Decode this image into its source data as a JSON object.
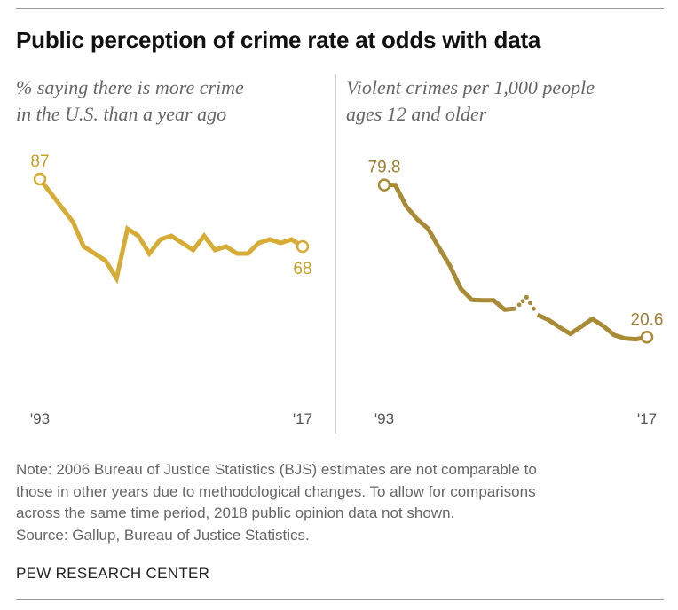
{
  "title": "Public perception of crime rate at odds with data",
  "note_lines": [
    "Note: 2006 Bureau of Justice Statistics (BJS) estimates are not comparable to",
    "those in other years due to methodological changes. To allow for comparisons",
    "across the same time period, 2018 public opinion data not shown.",
    "Source: Gallup, Bureau of Justice Statistics."
  ],
  "brand": "PEW RESEARCH CENTER",
  "colors": {
    "left_line": "#d6ac34",
    "right_line": "#a98a35",
    "label": "#c9a227",
    "label_dark": "#9e8032"
  },
  "chart_data": [
    {
      "type": "line",
      "subtitle_lines": [
        "% saying there is more crime",
        "in the U.S. than a year ago"
      ],
      "x_tick_labels": [
        "'93",
        "'17"
      ],
      "x_range": [
        1993,
        2017
      ],
      "ylim": [
        40,
        100
      ],
      "grid": false,
      "series": [
        {
          "x": [
            1993,
            1994,
            1995,
            1996,
            1997,
            1998,
            1999,
            2000,
            2001,
            2002,
            2003,
            2004,
            2005,
            2006,
            2007,
            2008,
            2009,
            2010,
            2011,
            2012,
            2013,
            2014,
            2015,
            2016,
            2017
          ],
          "values": [
            87,
            83,
            79,
            75,
            68,
            66,
            64,
            59,
            73,
            71,
            66,
            70,
            71,
            69,
            67,
            71,
            67,
            68,
            66,
            66,
            69,
            70,
            69,
            70,
            68
          ],
          "gaps_after": []
        }
      ],
      "annotations": [
        {
          "x": 1993,
          "y": 87,
          "text": "87",
          "position": "above"
        },
        {
          "x": 2017,
          "y": 68,
          "text": "68",
          "position": "below"
        }
      ]
    },
    {
      "type": "line",
      "subtitle_lines": [
        "Violent crimes per 1,000 people",
        "ages 12 and older"
      ],
      "x_tick_labels": [
        "'93",
        "'17"
      ],
      "x_range": [
        1993,
        2017
      ],
      "ylim": [
        0,
        100
      ],
      "grid": false,
      "series": [
        {
          "x": [
            1993,
            1994,
            1995,
            1996,
            1997,
            1998,
            1999,
            2000,
            2001,
            2002,
            2003,
            2004,
            2005,
            2006,
            2007,
            2008,
            2009,
            2010,
            2011,
            2012,
            2013,
            2014,
            2015,
            2016,
            2017
          ],
          "values": [
            79.8,
            79.8,
            71.5,
            66.5,
            62.8,
            55.4,
            48.4,
            39.4,
            35.1,
            34.9,
            34.9,
            31.3,
            31.7,
            36.1,
            29.3,
            27.3,
            24.5,
            21.9,
            24.7,
            27.7,
            25.0,
            21.4,
            20.1,
            19.8,
            20.6
          ],
          "gaps_after": [
            2005,
            2006
          ]
        }
      ],
      "annotations": [
        {
          "x": 1993,
          "y": 79.8,
          "text": "79.8",
          "position": "above"
        },
        {
          "x": 2017,
          "y": 20.6,
          "text": "20.6",
          "position": "above"
        }
      ]
    }
  ]
}
